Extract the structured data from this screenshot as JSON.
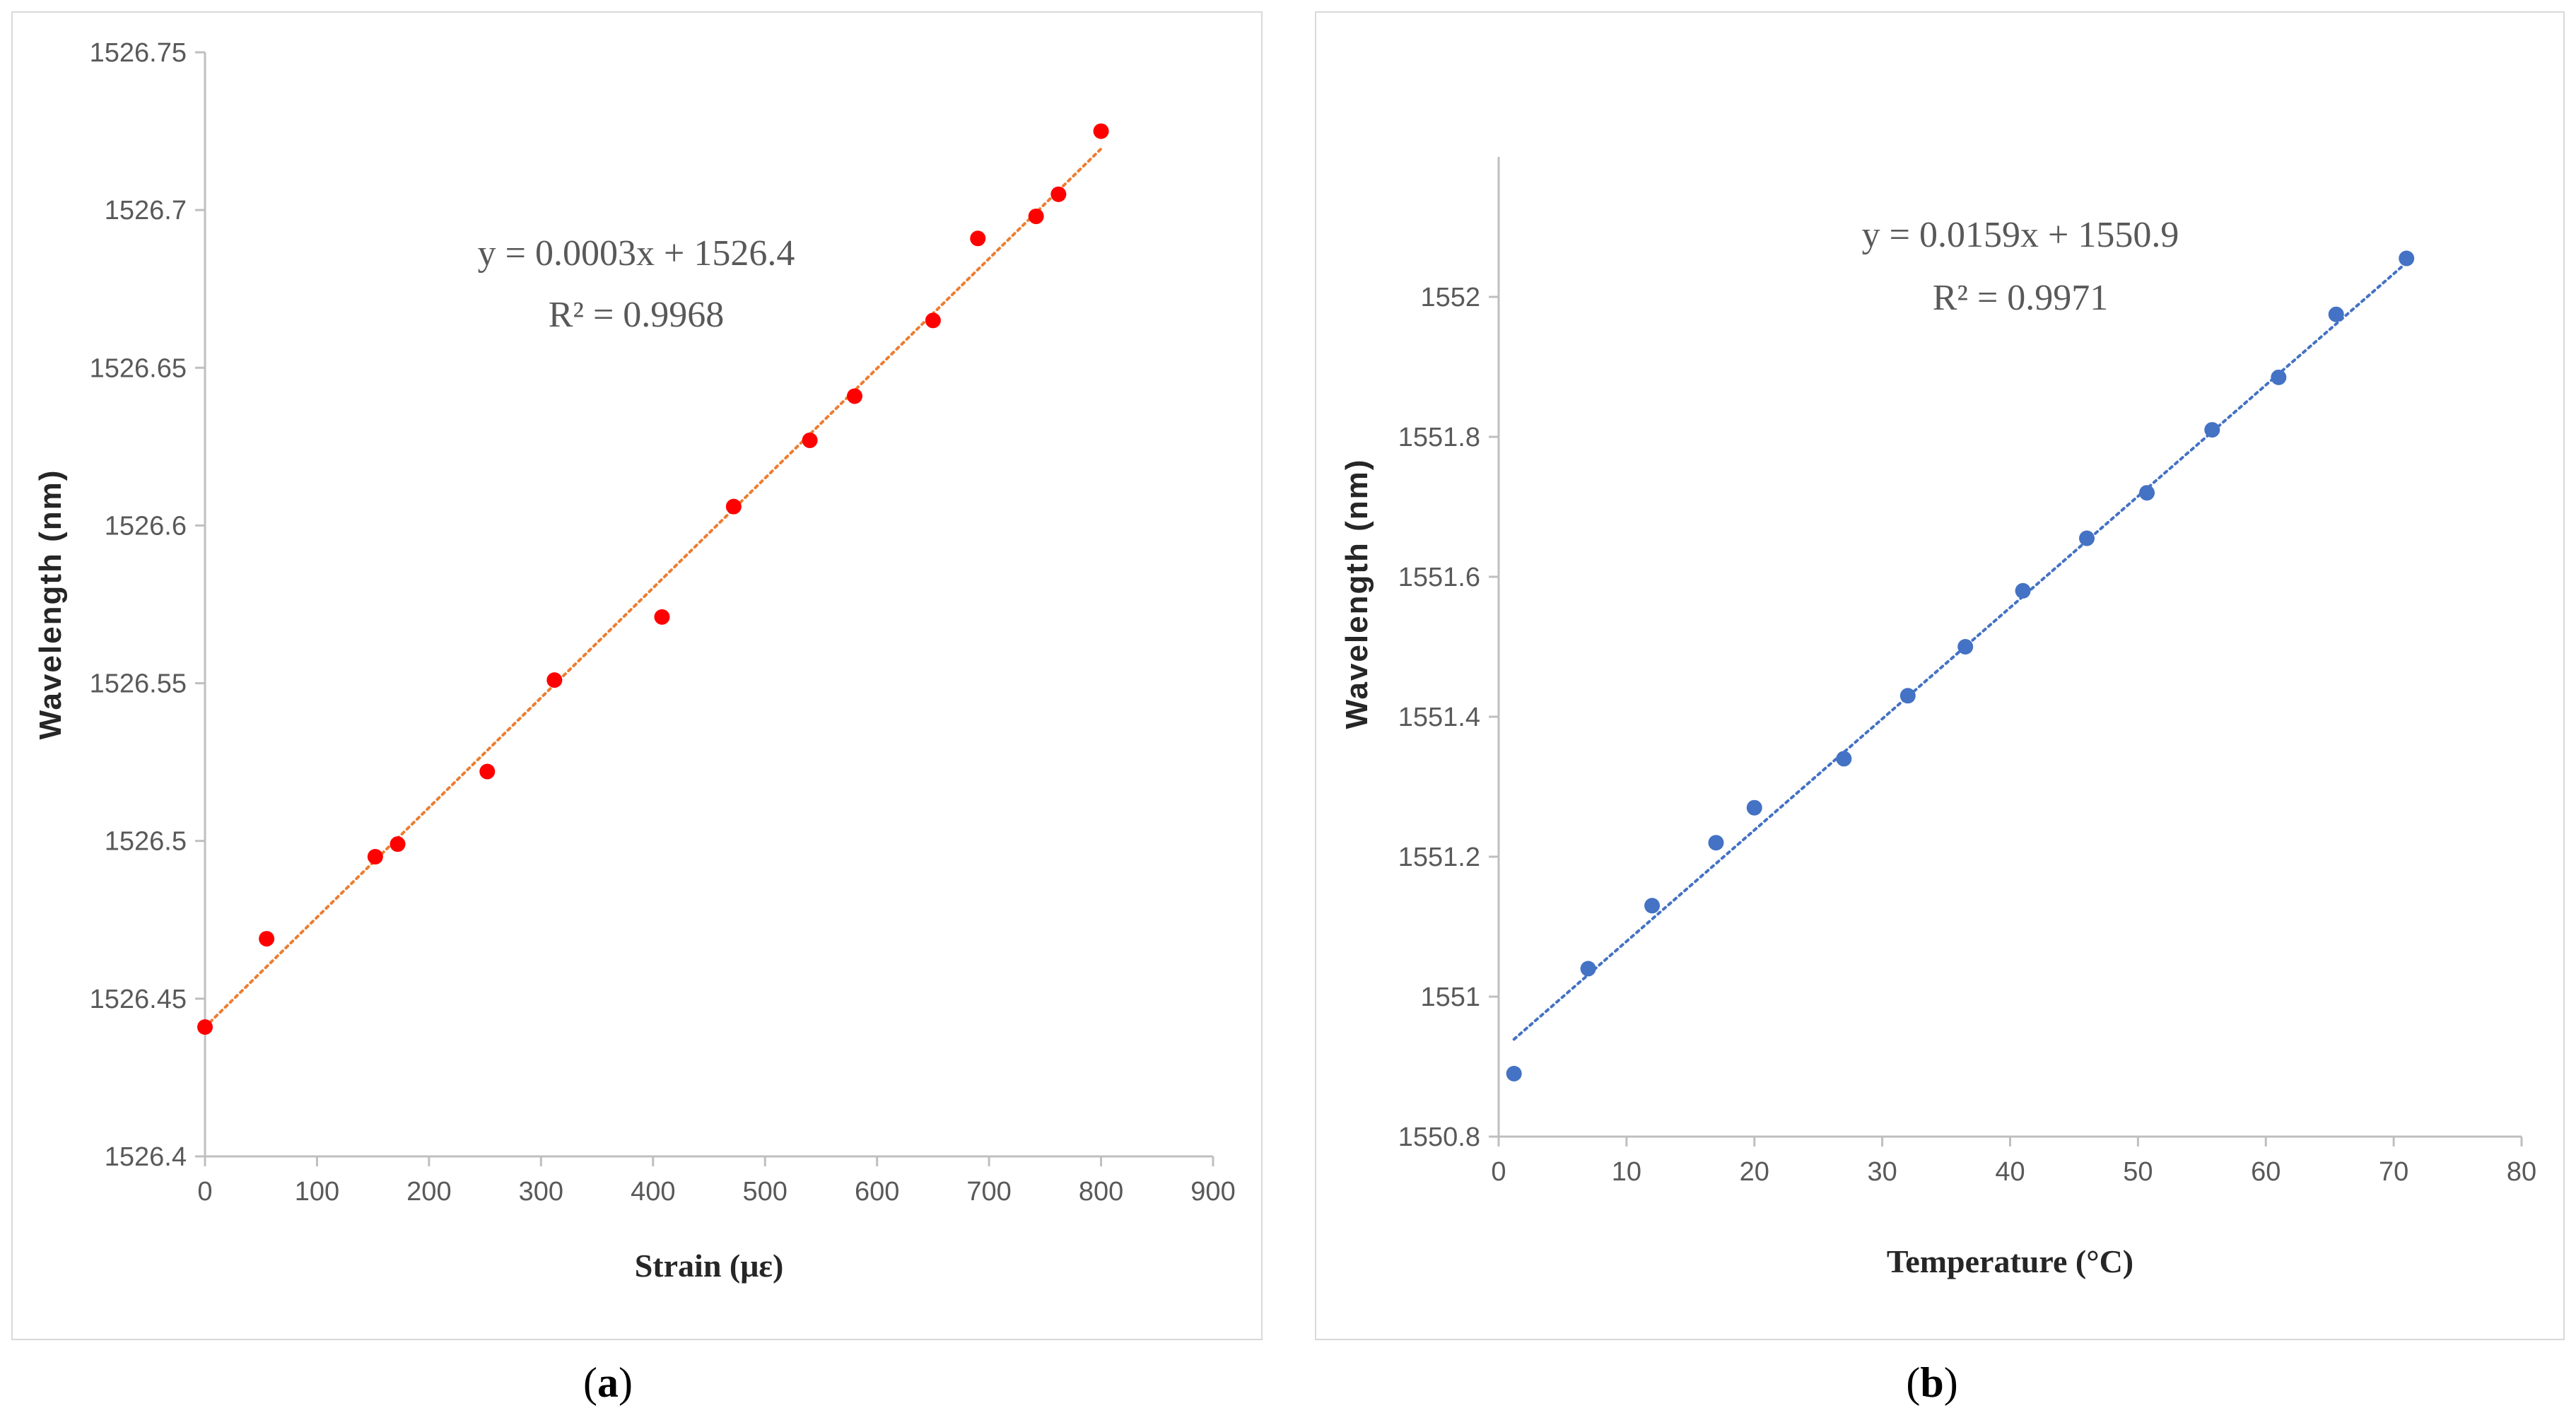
{
  "chart_data": [
    {
      "type": "scatter",
      "panel_label": "a",
      "xlabel": "Strain (με)",
      "ylabel": "Wavelength (nm)",
      "xlim": [
        0,
        900
      ],
      "ylim": [
        1526.4,
        1526.75
      ],
      "x_ticks": [
        0,
        100,
        200,
        300,
        400,
        500,
        600,
        700,
        800,
        900
      ],
      "y_ticks": [
        1526.4,
        1526.45,
        1526.5,
        1526.55,
        1526.6,
        1526.65,
        1526.7,
        1526.75
      ],
      "y_tick_labels": [
        "1526.4",
        "1526.45",
        "1526.5",
        "1526.55",
        "1526.6",
        "1526.65",
        "1526.7",
        "1526.75"
      ],
      "marker_color": "#ff0000",
      "trendline_color": "#ed7d31",
      "series": [
        {
          "name": "data",
          "x": [
            0,
            55,
            152,
            172,
            252,
            312,
            408,
            472,
            540,
            580,
            650,
            690,
            742,
            762,
            800
          ],
          "y": [
            1526.441,
            1526.469,
            1526.495,
            1526.499,
            1526.522,
            1526.551,
            1526.571,
            1526.606,
            1526.627,
            1526.641,
            1526.665,
            1526.691,
            1526.698,
            1526.705,
            1526.725
          ]
        }
      ],
      "trendline": {
        "slope": 0.000348,
        "intercept": 1526.441,
        "x_range": [
          0,
          800
        ]
      },
      "equation": "y = 0.0003x + 1526.4",
      "r_squared": "R² = 0.9968"
    },
    {
      "type": "scatter",
      "panel_label": "b",
      "xlabel": "Temperature (°C)",
      "ylabel": "Wavelength (nm)",
      "xlim": [
        0,
        80
      ],
      "ylim": [
        1550.8,
        1552.2
      ],
      "x_ticks": [
        0,
        10,
        20,
        30,
        40,
        50,
        60,
        70,
        80
      ],
      "y_ticks": [
        1550.8,
        1551,
        1551.2,
        1551.4,
        1551.6,
        1551.8,
        1552
      ],
      "y_tick_labels": [
        "1550.8",
        "1551",
        "1551.2",
        "1551.4",
        "1551.6",
        "1551.8",
        "1552"
      ],
      "marker_color": "#4472c4",
      "trendline_color": "#4472c4",
      "series": [
        {
          "name": "data",
          "x": [
            1.2,
            7,
            12,
            17,
            20,
            27,
            32,
            36.5,
            41,
            46,
            50.7,
            55.8,
            61,
            65.5,
            71
          ],
          "y": [
            1550.89,
            1551.04,
            1551.13,
            1551.22,
            1551.27,
            1551.34,
            1551.43,
            1551.5,
            1551.58,
            1551.655,
            1551.72,
            1551.81,
            1551.885,
            1551.975,
            1552.055
          ]
        }
      ],
      "trendline": {
        "slope": 0.0159,
        "intercept": 1550.92,
        "x_range": [
          1.2,
          71
        ]
      },
      "equation": "y = 0.0159x + 1550.9",
      "r_squared": "R² = 0.9971"
    }
  ],
  "captions": {
    "a": "a",
    "b": "b"
  }
}
